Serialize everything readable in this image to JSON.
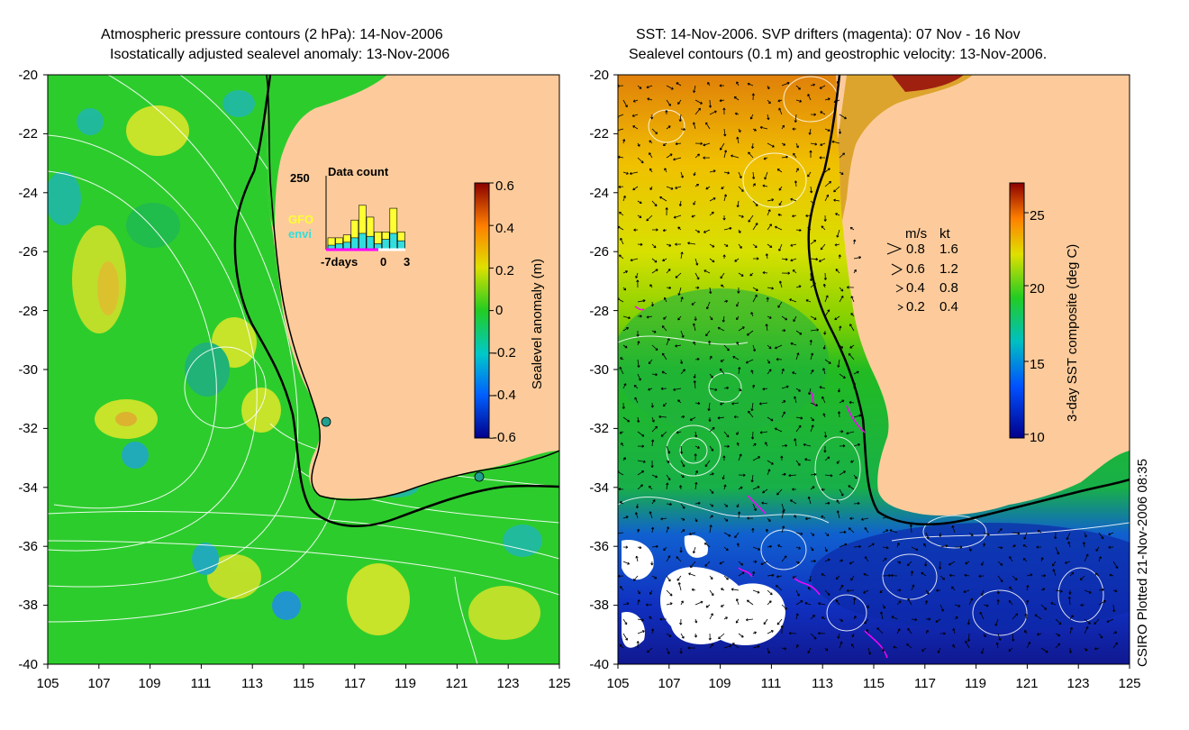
{
  "left_panel": {
    "title_line1": "Atmospheric pressure contours (2 hPa): 14-Nov-2006",
    "title_line2": "Isostatically adjusted sealevel anomaly: 13-Nov-2006",
    "colorbar_label": "Sealevel anomaly (m)",
    "colorbar_ticks": [
      "0.6",
      "0.4",
      "0.2",
      "0",
      "-0.2",
      "-0.4",
      "-0.6"
    ],
    "inset": {
      "title": "Data count",
      "max_label": "250",
      "x_labels": [
        "-7days",
        "0",
        "3"
      ],
      "legend": [
        {
          "label": "GFO",
          "color": "#ffff33"
        },
        {
          "label": "envi",
          "color": "#33dddd"
        }
      ],
      "gfo_counts": [
        40,
        40,
        50,
        100,
        150,
        110,
        60,
        60,
        140,
        60
      ],
      "envi_counts": [
        15,
        20,
        25,
        40,
        55,
        45,
        20,
        35,
        55,
        30
      ]
    }
  },
  "right_panel": {
    "title_line1": "SST: 14-Nov-2006. SVP drifters (magenta): 07 Nov - 16 Nov",
    "title_line2": "Sealevel contours (0.1 m) and geostrophic velocity: 13-Nov-2006.",
    "colorbar_label": "3-day SST composite (deg C)",
    "colorbar_ticks": [
      "25",
      "20",
      "15",
      "10"
    ],
    "velocity_legend": {
      "header_ms": "m/s",
      "header_kt": "kt",
      "rows": [
        {
          "ms": "0.8",
          "kt": "1.6"
        },
        {
          "ms": "0.6",
          "kt": "1.2"
        },
        {
          "ms": "0.4",
          "kt": "0.8"
        },
        {
          "ms": "0.2",
          "kt": "0.4"
        }
      ]
    }
  },
  "axes": {
    "y_ticks": [
      "-20",
      "-22",
      "-24",
      "-26",
      "-28",
      "-30",
      "-32",
      "-34",
      "-36",
      "-38",
      "-40"
    ],
    "x_ticks": [
      "105",
      "107",
      "109",
      "111",
      "113",
      "115",
      "117",
      "119",
      "121",
      "123",
      "125"
    ]
  },
  "credit": "CSIRO Plotted 21-Nov-2006 08:35",
  "colors": {
    "land": "#fdcb9b",
    "ocean_green": "#2bcc2b",
    "coast": "#000000"
  }
}
